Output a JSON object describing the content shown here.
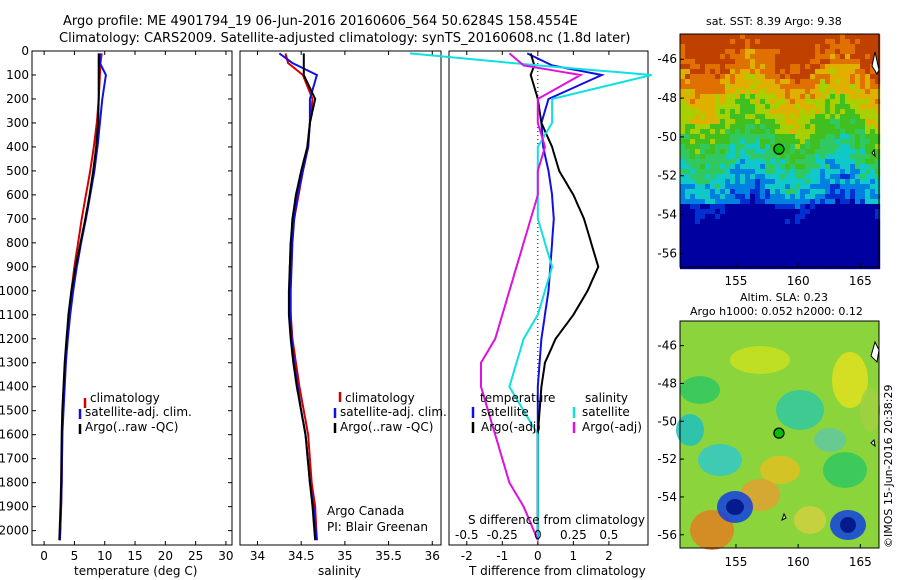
{
  "header": {
    "line1": "Argo profile: ME 4901794_19 06-Jun-2016 20160606_564 50.6284S 158.4554E",
    "line2": "Climatology: CARS2009. Satellite-adjusted climatology: synTS_20160608.nc (1.8d later)"
  },
  "colors": {
    "climatology": "#d00000",
    "satellite": "#1010e0",
    "argo": "#000000",
    "salinity_satellite": "#10e0e0",
    "salinity_argo": "#e010e0"
  },
  "credit": {
    "line1": "Argo Canada",
    "line2": "PI: Blair Greenan"
  },
  "watermark": "©IMOS 15-Jun-2016 20:38:29",
  "chart_data": [
    {
      "type": "line",
      "name": "temperature",
      "xlabel": "temperature (deg C)",
      "xlim": [
        -2,
        31
      ],
      "ylim": [
        0,
        2060
      ],
      "y_reversed": true,
      "xticks": [
        0,
        5,
        10,
        15,
        20,
        25,
        30
      ],
      "yticks": [
        0,
        100,
        200,
        300,
        400,
        500,
        600,
        700,
        800,
        900,
        1000,
        1100,
        1200,
        1300,
        1400,
        1500,
        1600,
        1700,
        1800,
        1900,
        2000
      ],
      "legend": [
        "climatology",
        "satellite-adj. clim.",
        "Argo(..raw -QC)"
      ],
      "series": [
        {
          "name": "climatology",
          "color": "#d00000",
          "x": [
            9.5,
            9.3,
            9.2,
            9.0,
            8.7,
            8.2,
            7.6,
            6.9,
            6.2,
            5.6,
            5.0,
            4.5,
            4.1,
            3.8,
            3.5,
            3.3,
            3.1,
            3.0,
            2.9,
            2.8,
            2.6
          ],
          "y": [
            10,
            50,
            100,
            200,
            300,
            400,
            500,
            600,
            700,
            800,
            900,
            1000,
            1100,
            1200,
            1300,
            1400,
            1500,
            1600,
            1800,
            1900,
            2040
          ]
        },
        {
          "name": "satellite-adj. clim.",
          "color": "#1010e0",
          "x": [
            9.2,
            9.2,
            10.2,
            9.6,
            9.2,
            8.8,
            8.3,
            7.6,
            6.9,
            6.1,
            5.4,
            4.8,
            4.3,
            3.9,
            3.6,
            3.4,
            3.2,
            3.0,
            2.9,
            2.8,
            2.6
          ],
          "y": [
            10,
            50,
            100,
            200,
            300,
            400,
            500,
            600,
            700,
            800,
            900,
            1000,
            1100,
            1200,
            1300,
            1400,
            1500,
            1600,
            1800,
            1900,
            2040
          ]
        },
        {
          "name": "Argo(..raw -QC)",
          "color": "#000000",
          "x": [
            9.0,
            9.0,
            9.0,
            9.0,
            8.9,
            8.6,
            8.1,
            7.5,
            6.8,
            6.0,
            5.2,
            4.5,
            4.0,
            3.7,
            3.4,
            3.2,
            3.0,
            2.9,
            2.8,
            2.7,
            2.5
          ],
          "y": [
            10,
            50,
            100,
            200,
            300,
            400,
            500,
            600,
            700,
            800,
            900,
            1000,
            1100,
            1200,
            1300,
            1400,
            1500,
            1600,
            1800,
            1900,
            2040
          ]
        }
      ]
    },
    {
      "type": "line",
      "name": "salinity",
      "xlabel": "salinity",
      "xlim": [
        33.8,
        36.1
      ],
      "ylim": [
        0,
        2060
      ],
      "y_reversed": true,
      "xticks": [
        34,
        34.5,
        35,
        35.5,
        36
      ],
      "xticklabels": [
        "34",
        "34.5",
        "35",
        "35.5",
        "36"
      ],
      "legend": [
        "climatology",
        "satellite-adj. clim.",
        "Argo(..raw -QC)"
      ],
      "series": [
        {
          "name": "climatology",
          "color": "#d00000",
          "x": [
            34.32,
            34.35,
            34.52,
            34.63,
            34.6,
            34.58,
            34.52,
            34.47,
            34.42,
            34.38,
            34.37,
            34.37,
            34.38,
            34.4,
            34.44,
            34.48,
            34.53,
            34.58,
            34.62,
            34.66,
            34.68
          ],
          "y": [
            10,
            50,
            100,
            200,
            300,
            400,
            500,
            600,
            700,
            800,
            900,
            1000,
            1100,
            1200,
            1300,
            1400,
            1500,
            1600,
            1800,
            1900,
            2040
          ]
        },
        {
          "name": "satellite-adj. clim.",
          "color": "#1010e0",
          "x": [
            34.25,
            34.4,
            34.68,
            34.6,
            34.6,
            34.58,
            34.52,
            34.46,
            34.42,
            34.4,
            34.39,
            34.38,
            34.38,
            34.39,
            34.42,
            34.46,
            34.5,
            34.55,
            34.6,
            34.64,
            34.68
          ],
          "y": [
            10,
            50,
            100,
            200,
            300,
            400,
            500,
            600,
            700,
            800,
            900,
            1000,
            1100,
            1200,
            1300,
            1400,
            1500,
            1600,
            1800,
            1900,
            2040
          ]
        },
        {
          "name": "Argo(..raw -QC)",
          "color": "#000000",
          "x": [
            34.53,
            34.53,
            34.53,
            34.66,
            34.6,
            34.57,
            34.5,
            34.44,
            34.4,
            34.38,
            34.37,
            34.36,
            34.36,
            34.38,
            34.41,
            34.45,
            34.5,
            34.55,
            34.6,
            34.63,
            34.66
          ],
          "y": [
            10,
            50,
            100,
            200,
            300,
            400,
            500,
            600,
            700,
            800,
            900,
            1000,
            1100,
            1200,
            1300,
            1400,
            1500,
            1600,
            1800,
            1900,
            2040
          ]
        }
      ]
    },
    {
      "type": "line",
      "name": "difference",
      "xlabel": "T difference from climatology",
      "xlabel2": "S difference from climatology",
      "xlim": [
        -2.5,
        3.1
      ],
      "ylim": [
        0,
        2060
      ],
      "y_reversed": true,
      "xticks": [
        -2,
        -1,
        0,
        1,
        2
      ],
      "xticks_s": [
        -0.5,
        -0.25,
        0,
        0.25,
        0.5
      ],
      "xticklabels_s": [
        "-0.5",
        "-0.25",
        "0",
        "0.25",
        "0.5"
      ],
      "legend_titles": [
        "temperature",
        "salinity"
      ],
      "legend": [
        "satellite",
        "Argo(-adj)",
        "satellite",
        "Argo(-adj)"
      ],
      "series": [
        {
          "name": "T satellite",
          "color": "#1010e0",
          "x": [
            -0.3,
            0.4,
            1.8,
            0.3,
            0.1,
            0.15,
            0.3,
            0.4,
            0.45,
            0.4,
            0.35,
            0.3,
            0.2,
            0.1,
            0.05,
            0.0,
            0.0,
            0.0,
            0.0,
            0.0,
            0.0
          ],
          "y": [
            10,
            60,
            100,
            200,
            300,
            400,
            500,
            600,
            700,
            800,
            900,
            1000,
            1100,
            1200,
            1300,
            1400,
            1500,
            1600,
            1800,
            1900,
            2040
          ]
        },
        {
          "name": "T Argo(-adj)",
          "color": "#000000",
          "x": [
            -0.2,
            -0.1,
            -0.2,
            0.0,
            0.1,
            0.4,
            0.6,
            1.0,
            1.3,
            1.5,
            1.7,
            1.4,
            1.0,
            0.5,
            0.2,
            0.1,
            0.05,
            0.0,
            0.0,
            0.0,
            0.0
          ],
          "y": [
            10,
            60,
            100,
            200,
            300,
            400,
            500,
            600,
            700,
            800,
            900,
            1000,
            1100,
            1200,
            1300,
            1400,
            1500,
            1600,
            1800,
            1900,
            2040
          ]
        },
        {
          "name": "S satellite",
          "color": "#10e0e0",
          "x": [
            -0.9,
            0.0,
            0.8,
            0.1,
            0.1,
            0.0,
            0.0,
            0.0,
            0.0,
            0.05,
            0.1,
            0.05,
            0.0,
            -0.1,
            -0.15,
            -0.2,
            -0.1,
            0.0,
            0.0,
            0.0,
            0.0
          ],
          "y": [
            10,
            60,
            100,
            200,
            300,
            400,
            500,
            600,
            700,
            800,
            900,
            1000,
            1100,
            1200,
            1300,
            1400,
            1500,
            1600,
            1800,
            1900,
            2040
          ]
        },
        {
          "name": "S Argo(-adj)",
          "color": "#e010e0",
          "x": [
            -0.2,
            -0.1,
            0.3,
            0.0,
            0.0,
            0.05,
            0.0,
            0.0,
            -0.05,
            -0.1,
            -0.15,
            -0.2,
            -0.25,
            -0.3,
            -0.4,
            -0.4,
            -0.35,
            -0.3,
            -0.2,
            -0.1,
            0.0
          ],
          "y": [
            10,
            60,
            100,
            200,
            300,
            400,
            500,
            600,
            700,
            800,
            900,
            1000,
            1100,
            1200,
            1300,
            1400,
            1500,
            1600,
            1800,
            1900,
            2040
          ]
        }
      ]
    },
    {
      "type": "heatmap",
      "name": "sst-map",
      "title": "sat. SST: 8.39 Argo: 9.38",
      "xlim": [
        150.5,
        166.5
      ],
      "ylim": [
        -56.7,
        -44.7
      ],
      "xticks": [
        155,
        160,
        165
      ],
      "yticks": [
        -46,
        -48,
        -50,
        -52,
        -54,
        -56
      ],
      "marker": {
        "lon": 158.4554,
        "lat": -50.6284
      }
    },
    {
      "type": "heatmap",
      "name": "sla-map",
      "title": "Altim. SLA: 0.23",
      "subtitle": "Argo h1000: 0.052 h2000: 0.12",
      "xlim": [
        150.5,
        166.5
      ],
      "ylim": [
        -56.7,
        -44.7
      ],
      "xticks": [
        155,
        160,
        165
      ],
      "yticks": [
        -46,
        -48,
        -50,
        -52,
        -54,
        -56
      ],
      "marker": {
        "lon": 158.4554,
        "lat": -50.6284
      }
    }
  ]
}
